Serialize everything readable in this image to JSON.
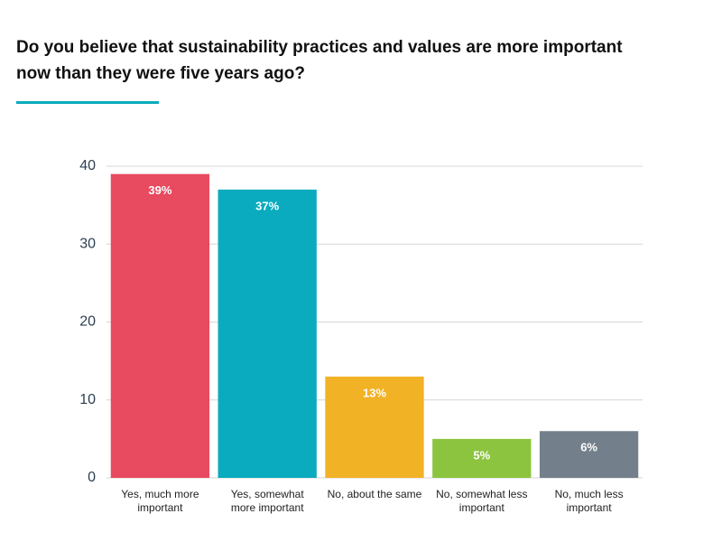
{
  "chart_data": {
    "type": "bar",
    "title": "Do you believe that sustainability practices and values are more important now than they were five years ago?",
    "categories": [
      "Yes, much more important",
      "Yes, somewhat more important",
      "No, about the same",
      "No, somewhat less important",
      "No, much less important"
    ],
    "values": [
      39,
      37,
      13,
      5,
      6
    ],
    "value_labels": [
      "39%",
      "37%",
      "13%",
      "5%",
      "6%"
    ],
    "colors": [
      "#e84a5f",
      "#0aabbe",
      "#f2b226",
      "#8cc43f",
      "#73808b"
    ],
    "ylim": [
      0,
      40
    ],
    "yticks": [
      0,
      10,
      20,
      30,
      40
    ],
    "grid": true
  }
}
